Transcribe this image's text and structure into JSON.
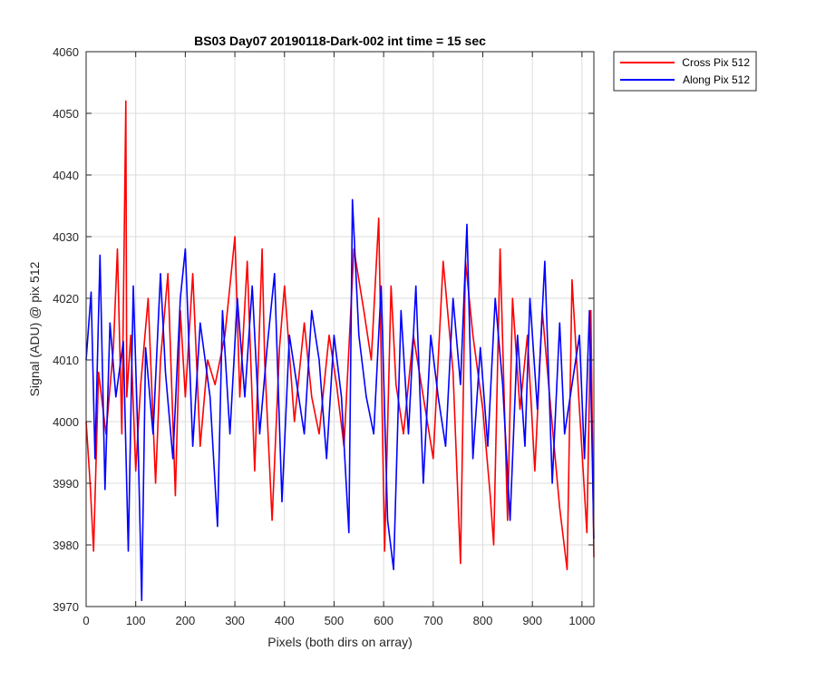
{
  "chart_data": {
    "type": "line",
    "title": "BS03 Day07 20190118-Dark-002 int time = 15 sec",
    "xlabel": "Pixels (both dirs on array)",
    "ylabel": "Signal (ADU) @ pix 512",
    "xlim": [
      0,
      1024
    ],
    "ylim": [
      3970,
      4060
    ],
    "xticks": [
      0,
      100,
      200,
      300,
      400,
      500,
      600,
      700,
      800,
      900,
      1000
    ],
    "yticks": [
      3970,
      3980,
      3990,
      4000,
      4010,
      4020,
      4030,
      4040,
      4050,
      4060
    ],
    "xtick_labels": [
      "0",
      "100",
      "200",
      "300",
      "400",
      "500",
      "600",
      "700",
      "800",
      "900",
      "1000"
    ],
    "ytick_labels": [
      "3970",
      "3980",
      "3990",
      "4000",
      "4010",
      "4020",
      "4030",
      "4040",
      "4050",
      "4060"
    ],
    "grid": true,
    "legend_position": "outside-top-right",
    "series": [
      {
        "name": "Cross Pix 512",
        "color": "#ff0000",
        "x": [
          0,
          8,
          15,
          25,
          40,
          55,
          63,
          72,
          80,
          82,
          90,
          100,
          110,
          125,
          140,
          150,
          165,
          180,
          190,
          200,
          215,
          230,
          245,
          260,
          280,
          300,
          310,
          325,
          340,
          355,
          360,
          375,
          390,
          400,
          420,
          440,
          455,
          470,
          490,
          505,
          520,
          540,
          560,
          575,
          590,
          602,
          615,
          625,
          640,
          660,
          680,
          700,
          720,
          740,
          755,
          765,
          780,
          800,
          815,
          822,
          835,
          850,
          860,
          875,
          890,
          905,
          920,
          935,
          955,
          970,
          980,
          995,
          1010,
          1018,
          1024
        ],
        "values": [
          4000,
          3990,
          3979,
          4008,
          3998,
          4012,
          4028,
          3998,
          4052,
          4004,
          4014,
          3992,
          4006,
          4020,
          3990,
          4010,
          4024,
          3988,
          4018,
          4004,
          4024,
          3996,
          4010,
          4006,
          4014,
          4030,
          4004,
          4026,
          3992,
          4028,
          4010,
          3984,
          4012,
          4022,
          4000,
          4016,
          4004,
          3998,
          4014,
          4006,
          3996,
          4028,
          4018,
          4010,
          4033,
          3979,
          4022,
          4006,
          3998,
          4014,
          4004,
          3994,
          4026,
          4008,
          3977,
          4026,
          4014,
          4002,
          3988,
          3980,
          4028,
          3984,
          4020,
          4002,
          4014,
          3992,
          4018,
          4004,
          3986,
          3976,
          4023,
          4002,
          3982,
          4018,
          3978
        ]
      },
      {
        "name": "Along Pix 512",
        "color": "#0000ff",
        "x": [
          0,
          10,
          18,
          28,
          38,
          48,
          60,
          75,
          85,
          95,
          105,
          112,
          120,
          135,
          150,
          160,
          175,
          190,
          200,
          215,
          230,
          250,
          265,
          275,
          290,
          305,
          320,
          335,
          350,
          365,
          380,
          395,
          410,
          425,
          440,
          455,
          470,
          485,
          500,
          515,
          530,
          537,
          550,
          565,
          580,
          595,
          608,
          620,
          635,
          650,
          665,
          680,
          695,
          710,
          725,
          740,
          755,
          768,
          780,
          795,
          810,
          825,
          840,
          855,
          870,
          885,
          895,
          910,
          925,
          940,
          955,
          965,
          980,
          995,
          1005,
          1015,
          1024
        ],
        "values": [
          4010,
          4021,
          3994,
          4027,
          3989,
          4016,
          4004,
          4013,
          3979,
          4022,
          3996,
          3971,
          4012,
          3998,
          4024,
          4008,
          3994,
          4020,
          4028,
          3996,
          4016,
          4004,
          3983,
          4018,
          3998,
          4020,
          4004,
          4022,
          3998,
          4012,
          4024,
          3987,
          4014,
          4006,
          3998,
          4018,
          4010,
          3994,
          4014,
          4004,
          3982,
          4036,
          4014,
          4004,
          3998,
          4022,
          3984,
          3976,
          4018,
          3998,
          4022,
          3990,
          4014,
          4004,
          3996,
          4020,
          4006,
          4032,
          3994,
          4012,
          3996,
          4020,
          4006,
          3984,
          4014,
          3996,
          4020,
          4002,
          4026,
          3990,
          4016,
          3998,
          4006,
          4014,
          3994,
          4018,
          3981
        ]
      }
    ]
  }
}
